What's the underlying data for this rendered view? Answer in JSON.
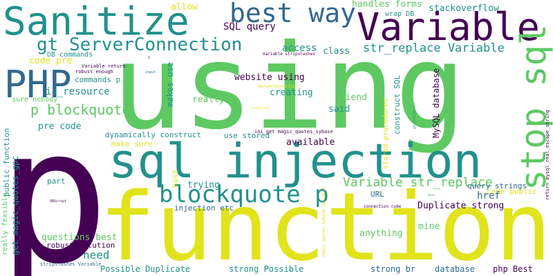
{
  "palette": {
    "dark_purple": "#440154",
    "dark_blue": "#31688e",
    "teal": "#21918c",
    "green": "#5ec962",
    "yellow": "#e1e31b",
    "background": "#ffffff"
  },
  "words": [
    {
      "text": "p",
      "color": "#440154"
    },
    {
      "text": "using",
      "color": "#5ec962"
    },
    {
      "text": "function",
      "color": "#e1e31b"
    },
    {
      "text": "sql injection",
      "color": "#21918c"
    },
    {
      "text": "Sanitize",
      "color": "#21918c"
    },
    {
      "text": "Variable",
      "color": "#440154"
    },
    {
      "text": "best way",
      "color": "#31688e"
    },
    {
      "text": "PHP",
      "color": "#31688e"
    },
    {
      "text": "stop sql",
      "color": "#5ec962"
    },
    {
      "text": "blockquote p",
      "color": "#21918c"
    },
    {
      "text": "gt ServerConnection",
      "color": "#21918c"
    },
    {
      "text": "str_replace Variable",
      "color": "#21918c"
    },
    {
      "text": "Variable str_replace",
      "color": "#5ec962"
    },
    {
      "text": "p blockquote",
      "color": "#5ec962"
    },
    {
      "text": "allow",
      "color": "#e1e31b"
    },
    {
      "text": "handles forms",
      "color": "#5ec962"
    },
    {
      "text": "stackoverflow",
      "color": "#21918c"
    },
    {
      "text": "wrap DB",
      "color": "#21918c"
    },
    {
      "text": "SQL query",
      "color": "#440154"
    },
    {
      "text": "access",
      "color": "#21918c"
    },
    {
      "text": "class",
      "color": "#21918c"
    },
    {
      "text": "DB commands",
      "color": "#21918c"
    },
    {
      "text": "code pre",
      "color": "#e1e31b"
    },
    {
      "text": "Variable return",
      "color": "#440154"
    },
    {
      "text": "robust enough",
      "color": "#440154"
    },
    {
      "text": "commands p",
      "color": "#21918c"
    },
    {
      "text": "is_resource",
      "color": "#21918c"
    },
    {
      "text": "makes use",
      "color": "#21918c"
    },
    {
      "text": "website using",
      "color": "#440154"
    },
    {
      "text": "creating",
      "color": "#21918c"
    },
    {
      "text": "friend",
      "color": "#5ec962"
    },
    {
      "text": "said",
      "color": "#21918c"
    },
    {
      "text": "really",
      "color": "#5ec962"
    },
    {
      "text": "sure nobody",
      "color": "#5ec962"
    },
    {
      "text": "MySQL database",
      "color": "#440154"
    },
    {
      "text": "construct SQL",
      "color": "#21918c"
    },
    {
      "text": "stored procedures",
      "color": "#e1e31b"
    },
    {
      "text": "pre code",
      "color": "#21918c"
    },
    {
      "text": "need",
      "color": "#21918c"
    },
    {
      "text": "dynamically construct",
      "color": "#21918c"
    },
    {
      "text": "make sure",
      "color": "#e1e31b"
    },
    {
      "text": "use stored",
      "color": "#21918c"
    },
    {
      "text": "ini_get magic_quotes_sybase",
      "color": "#440154"
    },
    {
      "text": "available",
      "color": "#440154"
    },
    {
      "text": "public function",
      "color": "#21918c"
    },
    {
      "text": "get_magic_quotes_gpc",
      "color": "#21918c"
    },
    {
      "text": "really feasible",
      "color": "#5ec962"
    },
    {
      "text": "part",
      "color": "#21918c"
    },
    {
      "text": "host",
      "color": "#e1e31b"
    },
    {
      "text": "trying",
      "color": "#21918c"
    },
    {
      "text": "injection etc",
      "color": "#31688e"
    },
    {
      "text": "query strings",
      "color": "#31688e"
    },
    {
      "text": "code public",
      "color": "#e1e31b"
    },
    {
      "text": "href",
      "color": "#31688e"
    },
    {
      "text": "URL",
      "color": "#31688e"
    },
    {
      "text": "Duplicate strong",
      "color": "#440154"
    },
    {
      "text": "questions best",
      "color": "#5ec962"
    },
    {
      "text": "robust solution",
      "color": "#440154"
    },
    {
      "text": "anything",
      "color": "#5ec962"
    },
    {
      "text": "mine",
      "color": "#5ec962"
    },
    {
      "text": "Possible Duplicate",
      "color": "#21918c"
    },
    {
      "text": "strong Possible",
      "color": "#21918c"
    },
    {
      "text": "strong br",
      "color": "#31688e"
    },
    {
      "text": "database",
      "color": "#31688e"
    },
    {
      "text": "php Best",
      "color": "#440154"
    },
    {
      "text": "stripslashes Variable",
      "color": "#31688e"
    },
    {
      "text": "connection code",
      "color": "#440154"
    },
    {
      "text": "return mysql_real_escape_string",
      "color": "#440154"
    },
    {
      "text": "VBScript",
      "color": "#440154"
    },
    {
      "text": "magic_quotes_sybase Variable",
      "color": "#e1e31b"
    },
    {
      "text": "gt PrintError",
      "color": "#21918c"
    },
    {
      "text": "input",
      "color": "#31688e"
    },
    {
      "text": "ServerConnection",
      "color": "#e1e31b"
    },
    {
      "text": "javascript",
      "color": "#e1e31b"
    },
    {
      "text": "Variable stripslashes",
      "color": "#440154"
    },
    {
      "text": "c",
      "color": "#440154"
    },
    {
      "text": "html",
      "color": "#21918c"
    },
    {
      "text": "text",
      "color": "#21918c"
    }
  ]
}
